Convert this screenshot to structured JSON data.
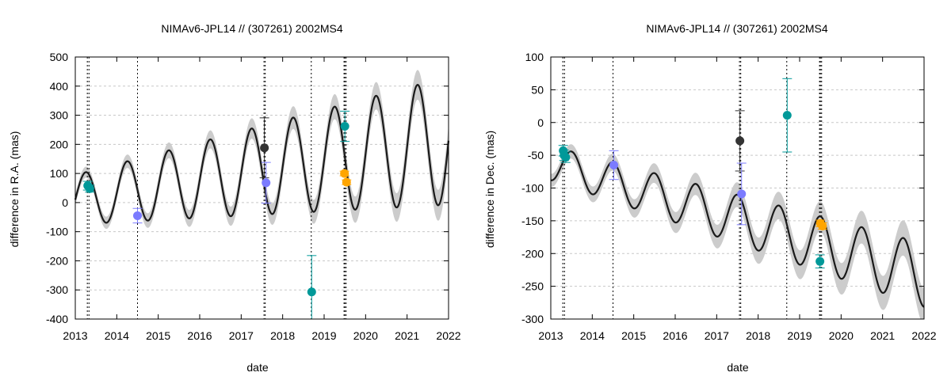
{
  "chart_data": [
    {
      "type": "scatter",
      "title": "NIMAv6-JPL14 // (307261) 2002MS4",
      "xlabel": "date",
      "ylabel": "difference in R.A. (mas)",
      "xlim": [
        2013,
        2022
      ],
      "ylim": [
        -400,
        500
      ],
      "x_ticks": [
        2013,
        2014,
        2015,
        2016,
        2017,
        2018,
        2019,
        2020,
        2021,
        2022
      ],
      "x_tick_labels": [
        "2013",
        "2014",
        "2015",
        "2016",
        "2017",
        "2018",
        "2019",
        "2020",
        "2021",
        "2022"
      ],
      "y_ticks": [
        -400,
        -300,
        -200,
        -100,
        0,
        100,
        200,
        300,
        400,
        500
      ],
      "y_tick_labels": [
        "-400",
        "-300",
        "-200",
        "-100",
        "0",
        "100",
        "200",
        "300",
        "400",
        "500"
      ],
      "grid": true,
      "model_curve": {
        "name": "model",
        "color": "#1a1a1a",
        "band_color": "#cccccc",
        "offset": 10,
        "trend": 22.5,
        "trend_ref": 2013,
        "amp0": 85,
        "amp_slope": 15,
        "amp_ref": 2013,
        "period": 1,
        "phase": 2013.0,
        "band0": 18,
        "band_slope": 4
      },
      "vlines": [
        2013.29,
        2013.33,
        2014.5,
        2017.55,
        2017.58,
        2018.69,
        2019.48,
        2019.5,
        2019.53
      ],
      "points": [
        {
          "x": 2013.3,
          "y": 58,
          "err": 15,
          "color": "#009999"
        },
        {
          "x": 2013.35,
          "y": 48,
          "err": 12,
          "color": "#009999"
        },
        {
          "x": 2014.5,
          "y": -45,
          "err": 25,
          "color": "#7b7bff"
        },
        {
          "x": 2017.56,
          "y": 188,
          "err": 103,
          "color": "#333333"
        },
        {
          "x": 2017.6,
          "y": 68,
          "err": 70,
          "color": "#7b7bff"
        },
        {
          "x": 2018.7,
          "y": -307,
          "err": 125,
          "color": "#009999"
        },
        {
          "x": 2019.5,
          "y": 262,
          "err": 52,
          "color": "#009999"
        },
        {
          "x": 2019.49,
          "y": 100,
          "err": 8,
          "color": "#ffa500"
        },
        {
          "x": 2019.54,
          "y": 70,
          "err": 8,
          "color": "#ffa500"
        }
      ]
    },
    {
      "type": "scatter",
      "title": "NIMAv6-JPL14 // (307261) 2002MS4",
      "xlabel": "date",
      "ylabel": "difference in Dec. (mas)",
      "xlim": [
        2013,
        2022
      ],
      "ylim": [
        -300,
        100
      ],
      "x_ticks": [
        2013,
        2014,
        2015,
        2016,
        2017,
        2018,
        2019,
        2020,
        2021,
        2022
      ],
      "x_tick_labels": [
        "2013",
        "2014",
        "2015",
        "2016",
        "2017",
        "2018",
        "2019",
        "2020",
        "2021",
        "2022"
      ],
      "y_ticks": [
        -300,
        -250,
        -200,
        -150,
        -100,
        -50,
        0,
        50,
        100
      ],
      "y_tick_labels": [
        "-300",
        "-250",
        "-200",
        "-150",
        "-100",
        "-50",
        "0",
        "50",
        "100"
      ],
      "grid": true,
      "model_curve": {
        "name": "model",
        "color": "#1a1a1a",
        "band_color": "#cccccc",
        "offset": -62,
        "trend": -19,
        "trend_ref": 2013,
        "amp0": 26,
        "amp_slope": 2.5,
        "amp_ref": 2013,
        "period": 1,
        "phase": 2013.25,
        "band0": 10,
        "band_slope": 2
      },
      "vlines": [
        2013.29,
        2013.33,
        2014.5,
        2017.55,
        2017.58,
        2018.69,
        2019.48,
        2019.5,
        2019.53
      ],
      "points": [
        {
          "x": 2013.3,
          "y": -43,
          "err": 8,
          "color": "#009999"
        },
        {
          "x": 2013.32,
          "y": -50,
          "err": 8,
          "color": "#009999"
        },
        {
          "x": 2013.36,
          "y": -53,
          "err": 8,
          "color": "#009999"
        },
        {
          "x": 2014.52,
          "y": -65,
          "err": 22,
          "color": "#7b7bff"
        },
        {
          "x": 2017.56,
          "y": -28,
          "err": 46,
          "color": "#333333"
        },
        {
          "x": 2017.6,
          "y": -109,
          "err": 47,
          "color": "#7b7bff"
        },
        {
          "x": 2018.7,
          "y": 11,
          "err": 56,
          "color": "#009999"
        },
        {
          "x": 2019.49,
          "y": -212,
          "err": 10,
          "color": "#009999"
        },
        {
          "x": 2019.5,
          "y": -154,
          "err": 5,
          "color": "#ffa500"
        },
        {
          "x": 2019.55,
          "y": -158,
          "err": 5,
          "color": "#ffa500"
        }
      ]
    }
  ]
}
